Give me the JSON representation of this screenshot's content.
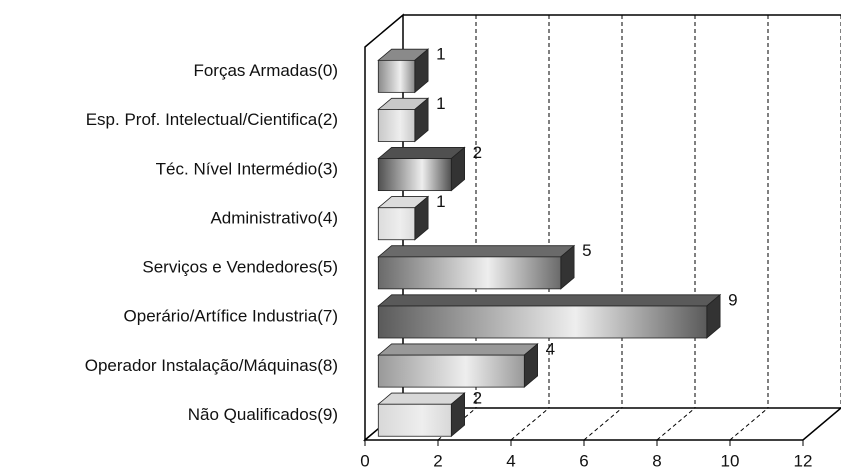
{
  "chart_data": {
    "type": "bar",
    "orientation": "horizontal",
    "categories": [
      "Forças Armadas(0)",
      "Esp. Prof. Intelectual/Cientifica(2)",
      "Téc. Nível Intermédio(3)",
      "Administrativo(4)",
      "Serviços e Vendedores(5)",
      "Operário/Artífice Industria(7)",
      "Operador Instalação/Máquinas(8)",
      "Não Qualificados(9)"
    ],
    "values": [
      1,
      1,
      2,
      1,
      5,
      9,
      4,
      2
    ],
    "colors": [
      "#8a8a8a",
      "#c8c8c8",
      "#505050",
      "#dcdcdc",
      "#6a6a6a",
      "#5a5a5a",
      "#999999",
      "#d8d8d8"
    ],
    "xlim": [
      0,
      12
    ],
    "xticks": [
      0,
      2,
      4,
      6,
      8,
      10,
      12
    ],
    "grid": true
  }
}
